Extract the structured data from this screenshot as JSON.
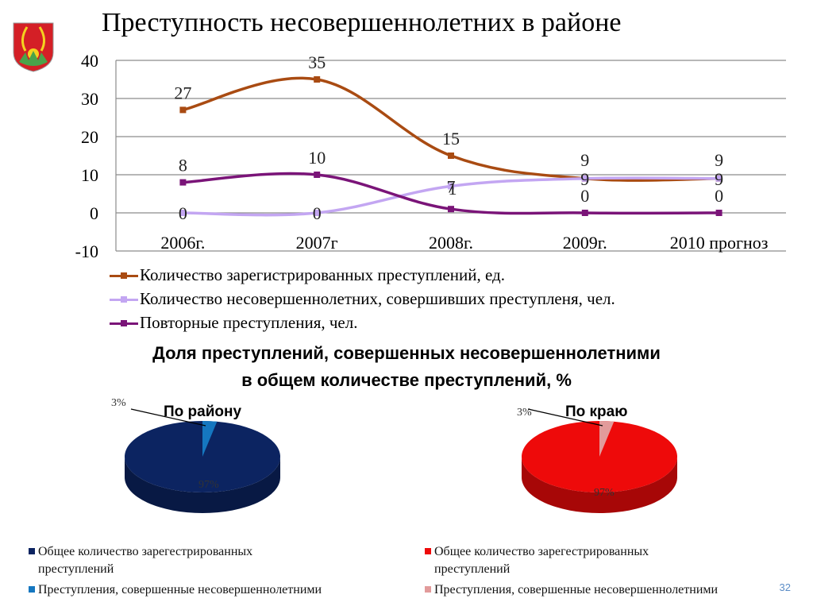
{
  "slide": {
    "title": "Преступность несовершеннолетних в районе",
    "page_number": "32"
  },
  "chart_data": [
    {
      "type": "line",
      "categories": [
        "2006г.",
        "2007г",
        "2008г.",
        "2009г.",
        "2010 прогноз"
      ],
      "ylim": [
        -10,
        40
      ],
      "yticks": [
        "40",
        "30",
        "20",
        "10",
        "0",
        "-10"
      ],
      "grid": true,
      "legend_position": "bottom",
      "series": [
        {
          "name": "Количество зарегистрированных преступлений, ед.",
          "values": [
            27,
            35,
            15,
            9,
            9
          ],
          "labels": [
            "27",
            "35",
            "15",
            "9",
            "9"
          ],
          "color": "#a94b12"
        },
        {
          "name": "Количество несовершеннолетних, совершивших преступленя, чел.",
          "values": [
            0,
            0,
            7,
            9,
            9
          ],
          "labels": [
            "0",
            "0",
            "7",
            "9",
            "9"
          ],
          "color": "#c3a6f2"
        },
        {
          "name": "Повторные преступления, чел.",
          "values": [
            8,
            10,
            1,
            0,
            0
          ],
          "labels": [
            "8",
            "10",
            "1",
            "0",
            "0"
          ],
          "color": "#7a1478"
        }
      ]
    },
    {
      "type": "pie",
      "title": "По району",
      "slices": [
        {
          "name": "Общее количество зарегестрированных преступлений",
          "value": 97,
          "label": "97%",
          "color": "#0c2461"
        },
        {
          "name": "Преступления, совершенные несовершеннолетними",
          "value": 3,
          "label": "3%",
          "color": "#1577c0"
        }
      ]
    },
    {
      "type": "pie",
      "title": "По краю",
      "slices": [
        {
          "name": "Общее количество зарегестрированных преступлений",
          "value": 97,
          "label": "97%",
          "color": "#ee0a0a"
        },
        {
          "name": "Преступления, совершенные несовершеннолетними",
          "value": 3,
          "label": "3%",
          "color": "#e29b9b"
        }
      ]
    }
  ],
  "section": {
    "subtitle_line1": "Доля преступлений, совершенных несовершеннолетними",
    "subtitle_line2": "в общем количестве преступлений, %"
  },
  "pie_legends": {
    "district": {
      "item1_line1": "Общее количество зарегестрированных",
      "item1_line2": "преступлений",
      "item2": "Преступления, совершенные несовершеннолетними"
    },
    "region": {
      "item1_line1": "Общее количество зарегестрированных",
      "item1_line2": "преступлений",
      "item2": "Преступления, совершенные несовершеннолетними"
    }
  }
}
